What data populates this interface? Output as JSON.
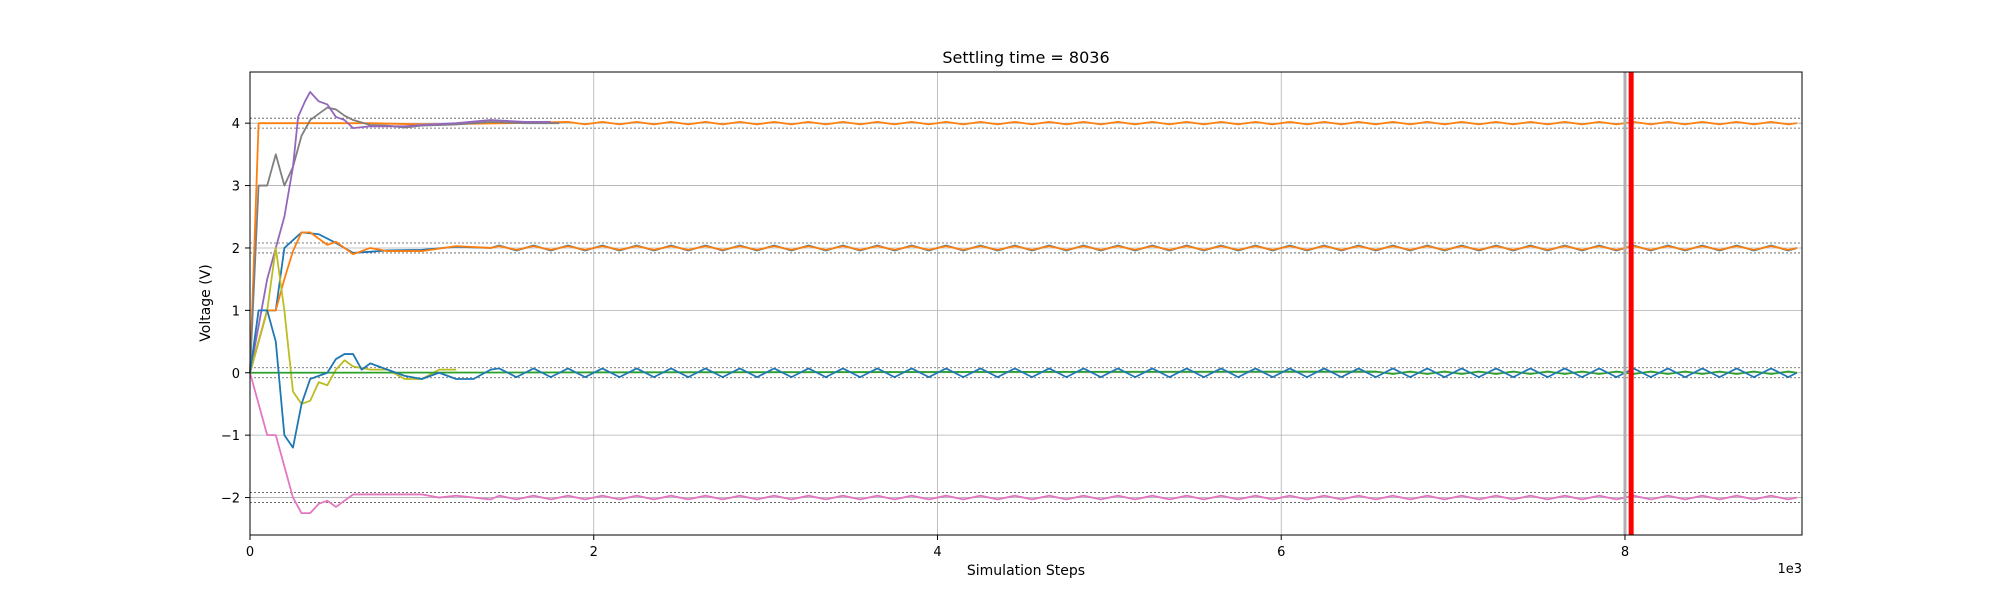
{
  "chart_data": {
    "type": "line",
    "title": "Settling time = 8036",
    "xlabel": "Simulation Steps",
    "ylabel": "Voltage (V)",
    "x_offset_text": "1e3",
    "xlim": [
      0,
      9.03
    ],
    "ylim": [
      -2.6,
      4.82
    ],
    "xticks": [
      0,
      2,
      4,
      6,
      8
    ],
    "xtick_labels": [
      "0",
      "2",
      "4",
      "6",
      "8"
    ],
    "yticks": [
      -2,
      -1,
      0,
      1,
      2,
      3,
      4
    ],
    "ytick_labels": [
      "−2",
      "−1",
      "0",
      "1",
      "2",
      "3",
      "4"
    ],
    "grid": true,
    "settling_time": 8.036,
    "settling_time_prev": 8.0,
    "settling_color": "#ff0000",
    "tolerance_bands": [
      {
        "target": 4,
        "lower": 3.92,
        "upper": 4.08
      },
      {
        "target": 2,
        "lower": 1.92,
        "upper": 2.08
      },
      {
        "target": 0,
        "lower": -0.08,
        "upper": 0.08
      },
      {
        "target": -2,
        "lower": -2.08,
        "upper": -1.92
      }
    ],
    "series": [
      {
        "color": "#ff7f0e",
        "target": 4,
        "points": [
          [
            0,
            0
          ],
          [
            0.05,
            4
          ],
          [
            0.1,
            4
          ],
          [
            0.2,
            4
          ],
          [
            0.3,
            4
          ],
          [
            0.5,
            4
          ],
          [
            0.7,
            4
          ],
          [
            1.0,
            3.98
          ],
          [
            1.5,
            4.0
          ],
          [
            2.0,
            4.0
          ]
        ],
        "osc": {
          "start": 1.8,
          "amp": 0.02,
          "period": 0.2,
          "end": 9.03
        }
      },
      {
        "color": "#7f7f7f",
        "target": 4,
        "points": [
          [
            0,
            0
          ],
          [
            0.05,
            3
          ],
          [
            0.1,
            3
          ],
          [
            0.15,
            3.5
          ],
          [
            0.2,
            3.0
          ],
          [
            0.25,
            3.3
          ],
          [
            0.3,
            3.8
          ],
          [
            0.35,
            4.05
          ],
          [
            0.4,
            4.15
          ],
          [
            0.45,
            4.25
          ],
          [
            0.5,
            4.22
          ],
          [
            0.55,
            4.12
          ],
          [
            0.6,
            4.05
          ],
          [
            0.7,
            3.97
          ],
          [
            0.8,
            3.96
          ],
          [
            0.9,
            3.93
          ],
          [
            1.0,
            3.96
          ],
          [
            1.2,
            3.98
          ],
          [
            1.4,
            4.02
          ],
          [
            1.6,
            4.0
          ],
          [
            1.8,
            4.0
          ]
        ],
        "osc": null
      },
      {
        "color": "#9467bd",
        "target": 4,
        "points": [
          [
            0,
            0
          ],
          [
            0.1,
            1.5
          ],
          [
            0.15,
            2.0
          ],
          [
            0.2,
            2.5
          ],
          [
            0.25,
            3.3
          ],
          [
            0.28,
            4.1
          ],
          [
            0.32,
            4.35
          ],
          [
            0.35,
            4.5
          ],
          [
            0.4,
            4.35
          ],
          [
            0.45,
            4.3
          ],
          [
            0.5,
            4.1
          ],
          [
            0.55,
            4.05
          ],
          [
            0.6,
            3.92
          ],
          [
            0.7,
            3.95
          ],
          [
            0.8,
            3.95
          ],
          [
            0.9,
            3.95
          ],
          [
            1.0,
            3.97
          ],
          [
            1.2,
            4.0
          ],
          [
            1.4,
            4.05
          ],
          [
            1.6,
            4.02
          ],
          [
            1.75,
            4.02
          ]
        ],
        "osc": null
      },
      {
        "color": "#1f77b4",
        "target": 2,
        "points": [
          [
            0,
            0
          ],
          [
            0.1,
            1.0
          ],
          [
            0.15,
            1.0
          ],
          [
            0.2,
            2.0
          ],
          [
            0.3,
            2.25
          ],
          [
            0.4,
            2.22
          ],
          [
            0.5,
            2.08
          ],
          [
            0.6,
            1.92
          ],
          [
            0.8,
            1.96
          ],
          [
            1.0,
            1.97
          ],
          [
            1.2,
            2.02
          ],
          [
            1.4,
            2.0
          ]
        ],
        "osc": {
          "start": 1.4,
          "amp": 0.04,
          "period": 0.2,
          "end": 9.03
        }
      },
      {
        "color": "#ff7f0e",
        "target": 2,
        "points": [
          [
            0,
            0
          ],
          [
            0.1,
            1.0
          ],
          [
            0.15,
            1.0
          ],
          [
            0.2,
            1.5
          ],
          [
            0.25,
            1.95
          ],
          [
            0.3,
            2.25
          ],
          [
            0.35,
            2.25
          ],
          [
            0.4,
            2.15
          ],
          [
            0.45,
            2.05
          ],
          [
            0.5,
            2.1
          ],
          [
            0.6,
            1.9
          ],
          [
            0.7,
            2.0
          ],
          [
            0.8,
            1.95
          ],
          [
            1.0,
            1.95
          ],
          [
            1.2,
            2.03
          ],
          [
            1.4,
            2.0
          ]
        ],
        "osc": {
          "start": 1.4,
          "amp": 0.03,
          "period": 0.2,
          "end": 9.03
        }
      },
      {
        "color": "#bcbd22",
        "target": 0,
        "points": [
          [
            0,
            0
          ],
          [
            0.05,
            0.5
          ],
          [
            0.1,
            1.0
          ],
          [
            0.15,
            2.0
          ],
          [
            0.2,
            1.0
          ],
          [
            0.25,
            -0.3
          ],
          [
            0.3,
            -0.5
          ],
          [
            0.35,
            -0.45
          ],
          [
            0.4,
            -0.15
          ],
          [
            0.45,
            -0.2
          ],
          [
            0.5,
            0.05
          ],
          [
            0.55,
            0.2
          ],
          [
            0.6,
            0.1
          ],
          [
            0.7,
            0.05
          ],
          [
            0.8,
            0.05
          ],
          [
            0.9,
            -0.1
          ],
          [
            1.0,
            -0.1
          ],
          [
            1.1,
            0.05
          ],
          [
            1.2,
            0.05
          ]
        ],
        "osc": null
      },
      {
        "color": "#2ca02c",
        "target": 0,
        "points": [
          [
            0,
            0
          ],
          [
            9.03,
            0
          ]
        ],
        "osc": {
          "start": 6.5,
          "amp": 0.02,
          "period": 0.2,
          "end": 9.03
        }
      },
      {
        "color": "#1f77b4",
        "target": 0,
        "points": [
          [
            0,
            0
          ],
          [
            0.05,
            1.0
          ],
          [
            0.1,
            1.0
          ],
          [
            0.15,
            0.5
          ],
          [
            0.2,
            -1.0
          ],
          [
            0.25,
            -1.2
          ],
          [
            0.3,
            -0.5
          ],
          [
            0.35,
            -0.1
          ],
          [
            0.4,
            -0.05
          ],
          [
            0.45,
            0.0
          ],
          [
            0.5,
            0.22
          ],
          [
            0.55,
            0.3
          ],
          [
            0.6,
            0.3
          ],
          [
            0.65,
            0.05
          ],
          [
            0.7,
            0.15
          ],
          [
            0.8,
            0.05
          ],
          [
            0.9,
            -0.05
          ],
          [
            1.0,
            -0.1
          ],
          [
            1.1,
            0.0
          ],
          [
            1.2,
            -0.1
          ],
          [
            1.3,
            -0.1
          ],
          [
            1.4,
            0.05
          ]
        ],
        "osc": {
          "start": 1.4,
          "amp": 0.07,
          "period": 0.2,
          "end": 9.03
        }
      },
      {
        "color": "#e377c2",
        "target": -2,
        "points": [
          [
            0,
            0
          ],
          [
            0.1,
            -1.0
          ],
          [
            0.15,
            -1.0
          ],
          [
            0.2,
            -1.5
          ],
          [
            0.25,
            -2.0
          ],
          [
            0.3,
            -2.25
          ],
          [
            0.35,
            -2.25
          ],
          [
            0.4,
            -2.1
          ],
          [
            0.45,
            -2.05
          ],
          [
            0.5,
            -2.15
          ],
          [
            0.55,
            -2.05
          ],
          [
            0.6,
            -1.95
          ],
          [
            0.7,
            -1.95
          ],
          [
            0.8,
            -1.95
          ],
          [
            0.9,
            -1.95
          ],
          [
            1.0,
            -1.95
          ],
          [
            1.1,
            -2.0
          ],
          [
            1.2,
            -1.97
          ],
          [
            1.4,
            -2.03
          ]
        ],
        "osc": {
          "start": 1.4,
          "amp": 0.03,
          "period": 0.2,
          "end": 9.03
        }
      }
    ]
  }
}
